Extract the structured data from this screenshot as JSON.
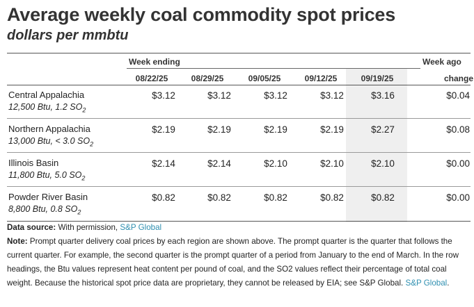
{
  "title": "Average weekly coal commodity spot prices",
  "subtitle": "dollars per mmbtu",
  "table": {
    "group_header_left": "Week ending",
    "group_header_right": "Week ago",
    "columns": [
      "08/22/25",
      "08/29/25",
      "09/05/25",
      "09/12/25",
      "09/19/25",
      "change"
    ],
    "rows": [
      {
        "name": "Central Appalachia",
        "spec_prefix": "12,500 Btu, 1.2 SO",
        "spec_sub": "2",
        "values": [
          "$3.12",
          "$3.12",
          "$3.12",
          "$3.12",
          "$3.16",
          "$0.04"
        ]
      },
      {
        "name": "Northern Appalachia",
        "spec_prefix": "13,000 Btu, < 3.0 SO",
        "spec_sub": "2",
        "values": [
          "$2.19",
          "$2.19",
          "$2.19",
          "$2.19",
          "$2.27",
          "$0.08"
        ]
      },
      {
        "name": "Illinois Basin",
        "spec_prefix": "11,800 Btu, 5.0 SO",
        "spec_sub": "2",
        "values": [
          "$2.14",
          "$2.14",
          "$2.10",
          "$2.10",
          "$2.10",
          "$0.00"
        ]
      },
      {
        "name": "Powder River Basin",
        "spec_prefix": "8,800 Btu, 0.8 SO",
        "spec_sub": "2",
        "values": [
          "$0.82",
          "$0.82",
          "$0.82",
          "$0.82",
          "$0.82",
          "$0.00"
        ]
      }
    ]
  },
  "footer": {
    "source_label": "Data source:",
    "source_text": "With permission,",
    "source_link": "S&P Global",
    "note_label": "Note:",
    "note_text": "Prompt quarter delivery coal prices by each region are shown above. The prompt quarter is the quarter that follows the current quarter. For example, the second quarter is the prompt quarter of a period from January to the end of March. In the row headings, the Btu values represent heat content per pound of coal, and the SO2 values reflect their percentage of total coal weight. Because the historical spot price data are proprietary, they cannot be released by EIA; see S&P Global.",
    "note_link": "S&P Global",
    "note_end": "."
  }
}
